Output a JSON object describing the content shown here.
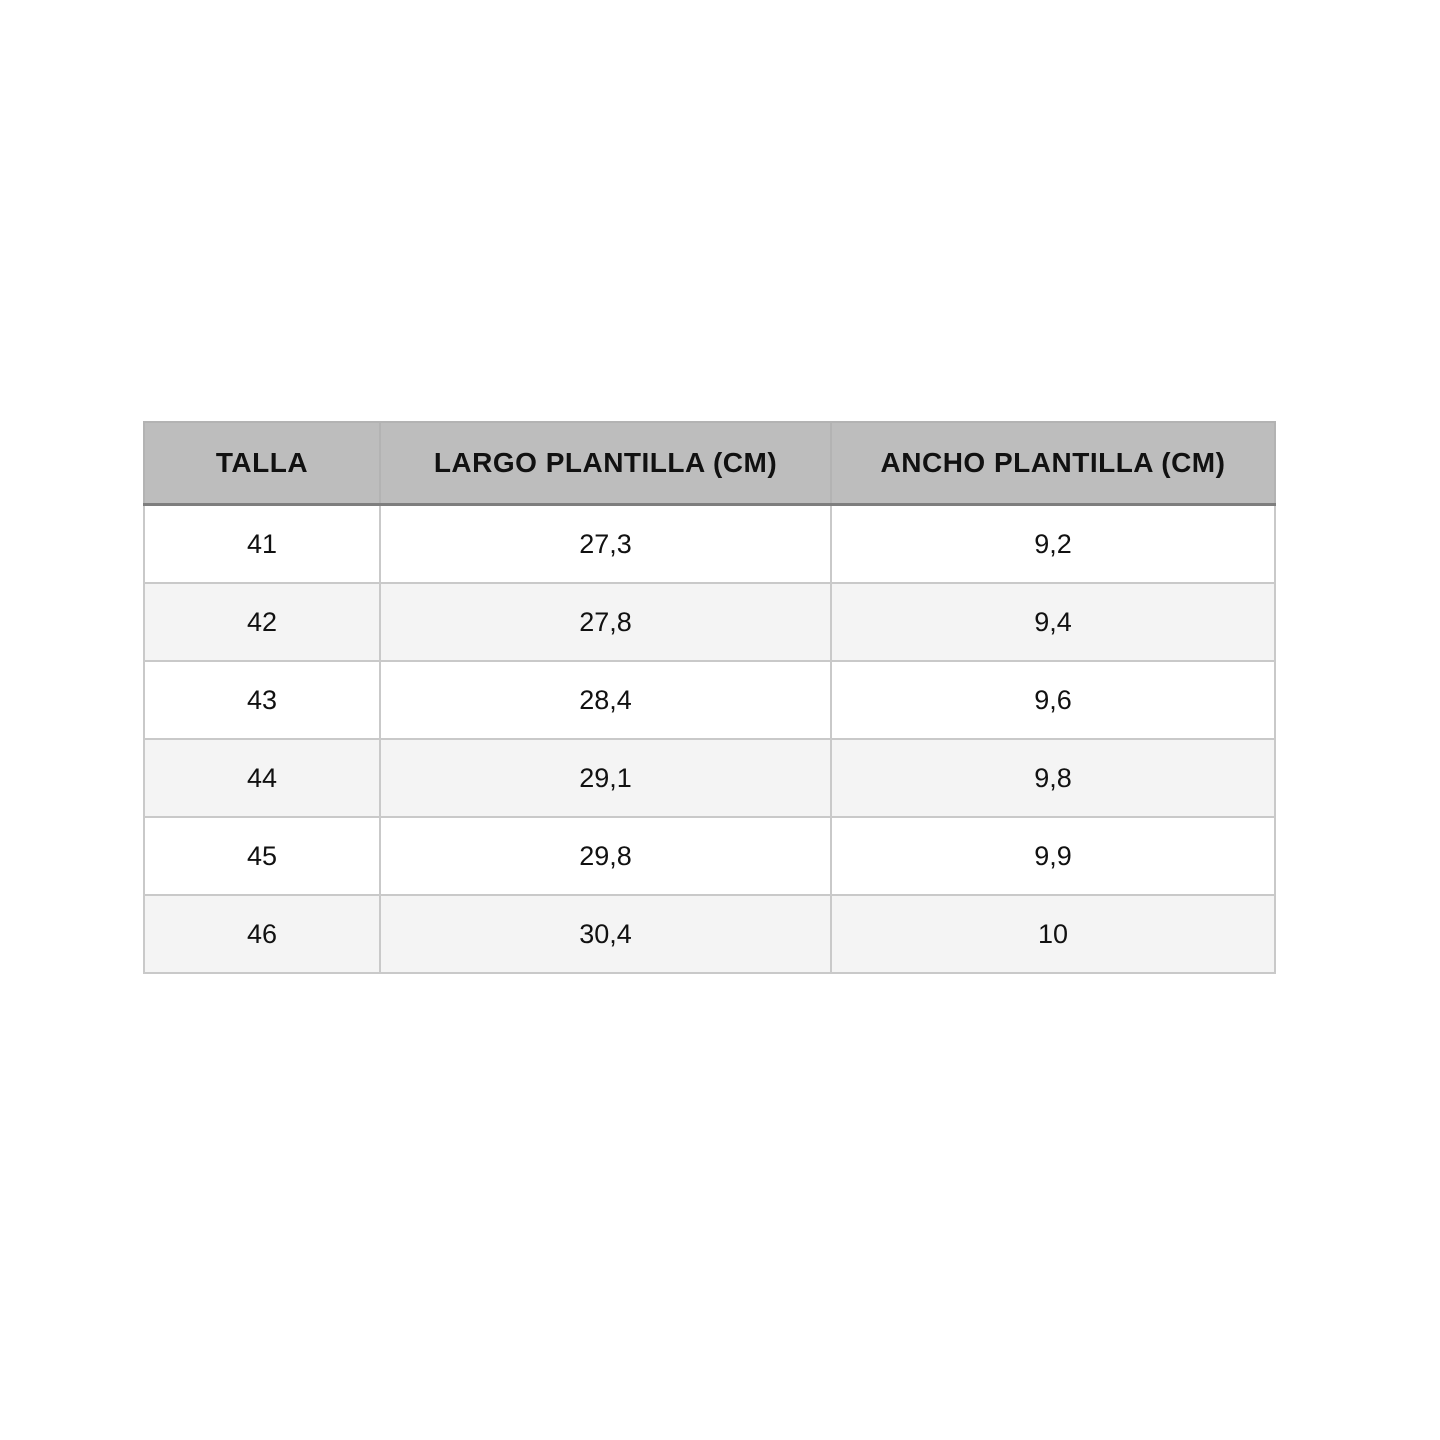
{
  "chart_data": {
    "type": "table",
    "columns": [
      "TALLA",
      "LARGO PLANTILLA (CM)",
      "ANCHO PLANTILLA (CM)"
    ],
    "rows": [
      [
        "41",
        "27,3",
        "9,2"
      ],
      [
        "42",
        "27,8",
        "9,4"
      ],
      [
        "43",
        "28,4",
        "9,6"
      ],
      [
        "44",
        "29,1",
        "9,8"
      ],
      [
        "45",
        "29,8",
        "9,9"
      ],
      [
        "46",
        "30,4",
        "10"
      ]
    ],
    "layout_hints": {
      "header_centered": true,
      "cells_centered": true,
      "alternating_rows": true
    }
  },
  "colors": {
    "header_bg": "#bdbdbd",
    "header_bottom_rule": "#7e7e7e",
    "row_bg": "#ffffff",
    "row_alt_bg": "#f4f4f4",
    "grid_line": "#c9c9c9",
    "text": "#111111",
    "page_bg": "#ffffff"
  }
}
